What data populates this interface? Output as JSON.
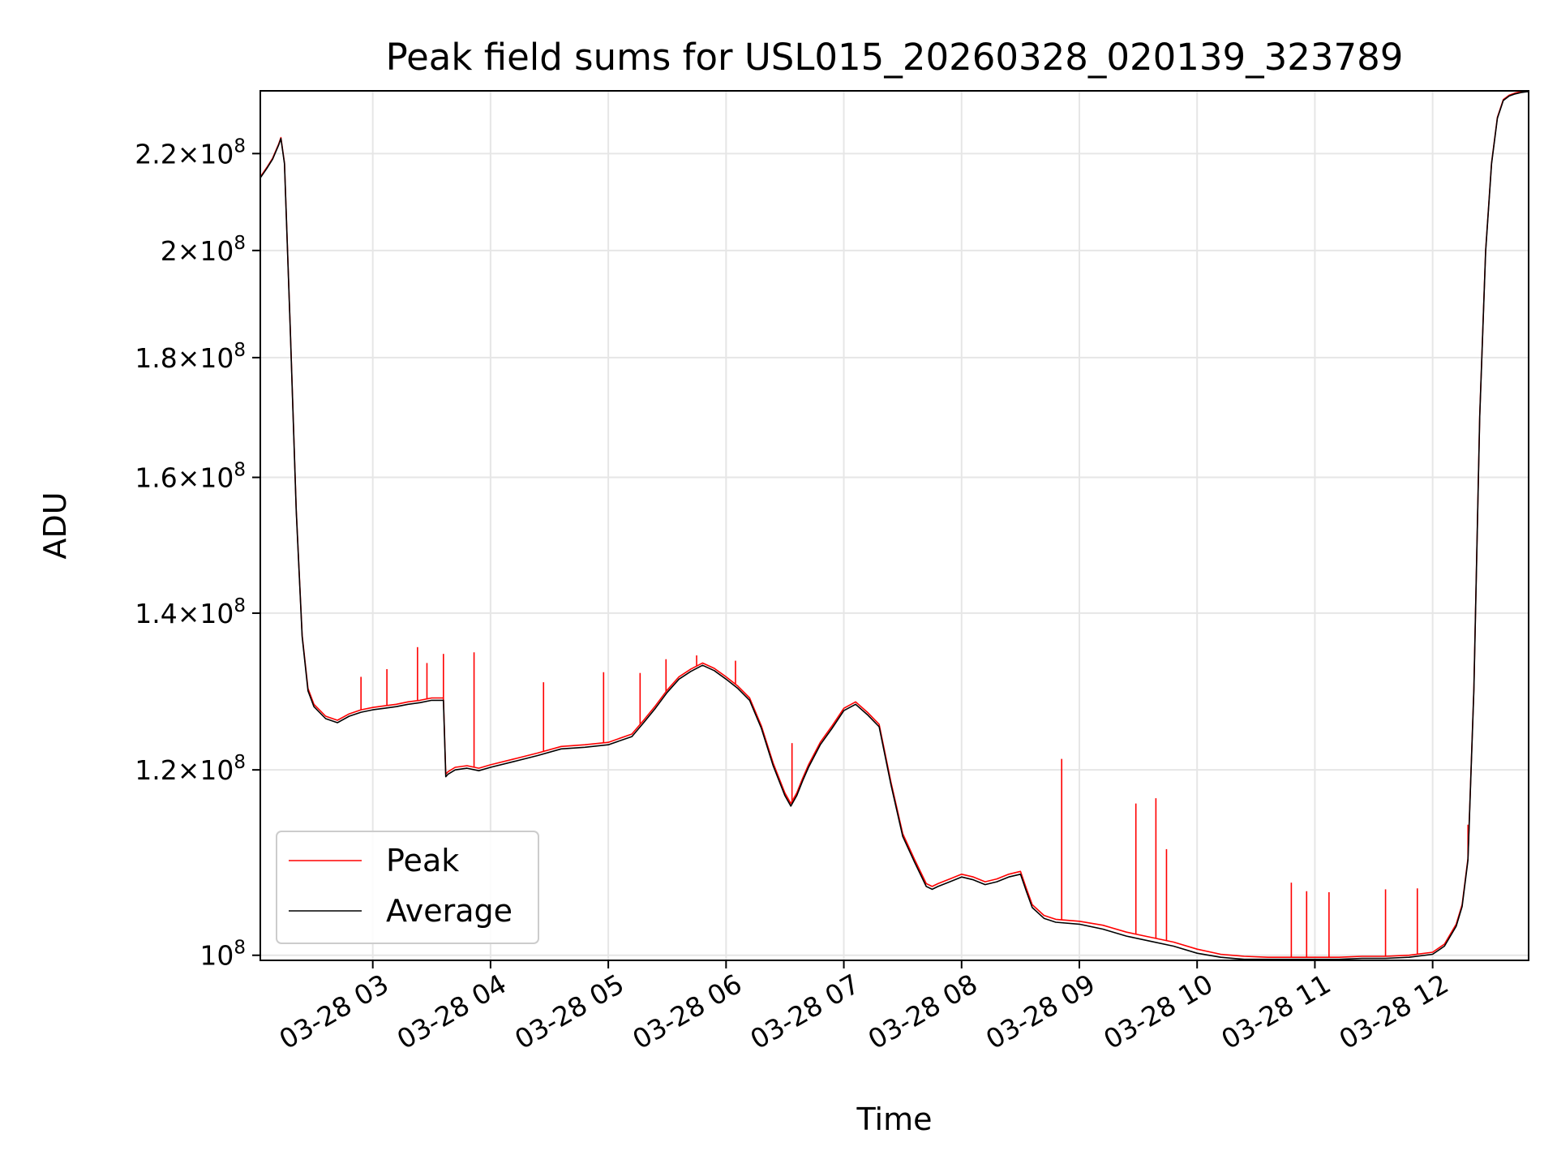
{
  "chart_data": {
    "type": "line",
    "title": "Peak field sums for USL015_20260328_020139_323789",
    "xlabel": "Time",
    "ylabel": "ADU",
    "yscale": "log",
    "x_unit": "hours since 03-28 00:00",
    "xlim": [
      2.045,
      12.815
    ],
    "ylim": [
      99500000,
      234000000
    ],
    "grid": true,
    "legend_position": "lower-left",
    "x_ticks": [
      {
        "value": 3,
        "label": "03-28 03"
      },
      {
        "value": 4,
        "label": "03-28 04"
      },
      {
        "value": 5,
        "label": "03-28 05"
      },
      {
        "value": 6,
        "label": "03-28 06"
      },
      {
        "value": 7,
        "label": "03-28 07"
      },
      {
        "value": 8,
        "label": "03-28 08"
      },
      {
        "value": 9,
        "label": "03-28 09"
      },
      {
        "value": 10,
        "label": "03-28 10"
      },
      {
        "value": 11,
        "label": "03-28 11"
      },
      {
        "value": 12,
        "label": "03-28 12"
      }
    ],
    "y_ticks": [
      {
        "value": 100000000,
        "mantissa": "",
        "exponent": "8"
      },
      {
        "value": 120000000,
        "mantissa": "1.2",
        "exponent": "8"
      },
      {
        "value": 140000000,
        "mantissa": "1.4",
        "exponent": "8"
      },
      {
        "value": 160000000,
        "mantissa": "1.6",
        "exponent": "8"
      },
      {
        "value": 180000000,
        "mantissa": "1.8",
        "exponent": "8"
      },
      {
        "value": 200000000,
        "mantissa": "2",
        "exponent": "8"
      },
      {
        "value": 220000000,
        "mantissa": "2.2",
        "exponent": "8"
      }
    ],
    "series": [
      {
        "name": "Peak",
        "color": "#ff0000",
        "x": [
          2.045,
          2.1,
          2.15,
          2.2,
          2.22,
          2.25,
          2.3,
          2.35,
          2.4,
          2.45,
          2.5,
          2.6,
          2.7,
          2.8,
          2.9,
          3.0,
          3.1,
          3.2,
          3.3,
          3.4,
          3.5,
          3.6,
          3.62,
          3.64,
          3.7,
          3.8,
          3.9,
          4.0,
          4.2,
          4.4,
          4.6,
          4.8,
          5.0,
          5.2,
          5.3,
          5.4,
          5.5,
          5.6,
          5.7,
          5.8,
          5.9,
          6.0,
          6.1,
          6.2,
          6.3,
          6.4,
          6.5,
          6.55,
          6.6,
          6.65,
          6.7,
          6.8,
          6.9,
          7.0,
          7.1,
          7.2,
          7.3,
          7.4,
          7.5,
          7.6,
          7.7,
          7.75,
          7.8,
          7.9,
          8.0,
          8.1,
          8.2,
          8.3,
          8.4,
          8.5,
          8.55,
          8.6,
          8.7,
          8.8,
          9.0,
          9.2,
          9.4,
          9.6,
          9.8,
          10.0,
          10.2,
          10.4,
          10.6,
          10.8,
          11.0,
          11.2,
          11.4,
          11.6,
          11.8,
          12.0,
          12.1,
          12.2,
          12.25,
          12.3,
          12.35,
          12.4,
          12.45,
          12.5,
          12.55,
          12.6,
          12.65,
          12.7,
          12.75,
          12.8,
          12.815
        ],
        "y": [
          215000000,
          217000000,
          219000000,
          222000000,
          223500000,
          218000000,
          185000000,
          155000000,
          137000000,
          130000000,
          128000000,
          126500000,
          126000000,
          126800000,
          127300000,
          127600000,
          127800000,
          128000000,
          128300000,
          128500000,
          128800000,
          128800000,
          119500000,
          119800000,
          120300000,
          120500000,
          120200000,
          120600000,
          121300000,
          122000000,
          122800000,
          123000000,
          123300000,
          124300000,
          126000000,
          127800000,
          129800000,
          131500000,
          132500000,
          133300000,
          132600000,
          131500000,
          130300000,
          128800000,
          125300000,
          120800000,
          117300000,
          116100000,
          117300000,
          119000000,
          120600000,
          123300000,
          125300000,
          127500000,
          128300000,
          127000000,
          125500000,
          118600000,
          112700000,
          109900000,
          107300000,
          107000000,
          107300000,
          107800000,
          108300000,
          108000000,
          107500000,
          107800000,
          108300000,
          108600000,
          106800000,
          105100000,
          104000000,
          103600000,
          103400000,
          103000000,
          102300000,
          101800000,
          101300000,
          100600000,
          100100000,
          99900000,
          99800000,
          99800000,
          99800000,
          99800000,
          99900000,
          99900000,
          100000000,
          100300000,
          101100000,
          103100000,
          105100000,
          110000000,
          130000000,
          170000000,
          200000000,
          218000000,
          228000000,
          232000000,
          233000000,
          233500000,
          233800000,
          234000000,
          234000000
        ],
        "spikes": [
          {
            "x": 2.9,
            "y": 131500000
          },
          {
            "x": 3.12,
            "y": 132500000
          },
          {
            "x": 3.38,
            "y": 135400000
          },
          {
            "x": 3.46,
            "y": 133300000
          },
          {
            "x": 3.6,
            "y": 134500000
          },
          {
            "x": 3.86,
            "y": 134700000
          },
          {
            "x": 4.45,
            "y": 130800000
          },
          {
            "x": 4.96,
            "y": 132100000
          },
          {
            "x": 5.27,
            "y": 132000000
          },
          {
            "x": 5.49,
            "y": 133800000
          },
          {
            "x": 5.75,
            "y": 134300000
          },
          {
            "x": 6.08,
            "y": 133600000
          },
          {
            "x": 6.56,
            "y": 123200000
          },
          {
            "x": 8.85,
            "y": 121300000
          },
          {
            "x": 9.48,
            "y": 116100000
          },
          {
            "x": 9.65,
            "y": 116700000
          },
          {
            "x": 9.74,
            "y": 111000000
          },
          {
            "x": 10.8,
            "y": 107400000
          },
          {
            "x": 10.93,
            "y": 106500000
          },
          {
            "x": 11.12,
            "y": 106400000
          },
          {
            "x": 11.6,
            "y": 106700000
          },
          {
            "x": 11.87,
            "y": 106800000
          },
          {
            "x": 12.3,
            "y": 113700000
          }
        ]
      },
      {
        "name": "Average",
        "color": "#000000",
        "x": [
          2.045,
          2.1,
          2.15,
          2.2,
          2.22,
          2.25,
          2.3,
          2.35,
          2.4,
          2.45,
          2.5,
          2.6,
          2.7,
          2.8,
          2.9,
          3.0,
          3.1,
          3.2,
          3.3,
          3.4,
          3.5,
          3.6,
          3.62,
          3.64,
          3.7,
          3.8,
          3.9,
          4.0,
          4.2,
          4.4,
          4.6,
          4.8,
          5.0,
          5.2,
          5.3,
          5.4,
          5.5,
          5.6,
          5.7,
          5.8,
          5.9,
          6.0,
          6.1,
          6.2,
          6.3,
          6.4,
          6.5,
          6.55,
          6.6,
          6.65,
          6.7,
          6.8,
          6.9,
          7.0,
          7.1,
          7.2,
          7.3,
          7.4,
          7.5,
          7.6,
          7.7,
          7.75,
          7.8,
          7.9,
          8.0,
          8.1,
          8.2,
          8.3,
          8.4,
          8.5,
          8.55,
          8.6,
          8.7,
          8.8,
          9.0,
          9.2,
          9.4,
          9.6,
          9.8,
          10.0,
          10.2,
          10.4,
          10.6,
          10.8,
          11.0,
          11.2,
          11.4,
          11.6,
          11.8,
          12.0,
          12.1,
          12.2,
          12.25,
          12.3,
          12.35,
          12.4,
          12.45,
          12.5,
          12.55,
          12.6,
          12.65,
          12.7,
          12.75,
          12.8,
          12.815
        ],
        "y": [
          214800000,
          216800000,
          218800000,
          221800000,
          223300000,
          217800000,
          184800000,
          154800000,
          136800000,
          129700000,
          127700000,
          126200000,
          125700000,
          126500000,
          127000000,
          127300000,
          127500000,
          127700000,
          128000000,
          128200000,
          128500000,
          128500000,
          119200000,
          119500000,
          120000000,
          120200000,
          119900000,
          120300000,
          121000000,
          121700000,
          122500000,
          122700000,
          123000000,
          124000000,
          125700000,
          127500000,
          129500000,
          131200000,
          132200000,
          133000000,
          132300000,
          131200000,
          130000000,
          128500000,
          125000000,
          120500000,
          117000000,
          115800000,
          117000000,
          118700000,
          120300000,
          123000000,
          125000000,
          127200000,
          128000000,
          126700000,
          125200000,
          118300000,
          112400000,
          109600000,
          107000000,
          106700000,
          107000000,
          107500000,
          108000000,
          107700000,
          107200000,
          107500000,
          108000000,
          108300000,
          106500000,
          104800000,
          103700000,
          103300000,
          103100000,
          102600000,
          101900000,
          101400000,
          100900000,
          100200000,
          99800000,
          99600000,
          99600000,
          99600000,
          99600000,
          99600000,
          99700000,
          99700000,
          99800000,
          100100000,
          100900000,
          102900000,
          104900000,
          109800000,
          129800000,
          169800000,
          199800000,
          217800000,
          227800000,
          231800000,
          232800000,
          233300000,
          233600000,
          233800000,
          233800000
        ]
      }
    ]
  }
}
